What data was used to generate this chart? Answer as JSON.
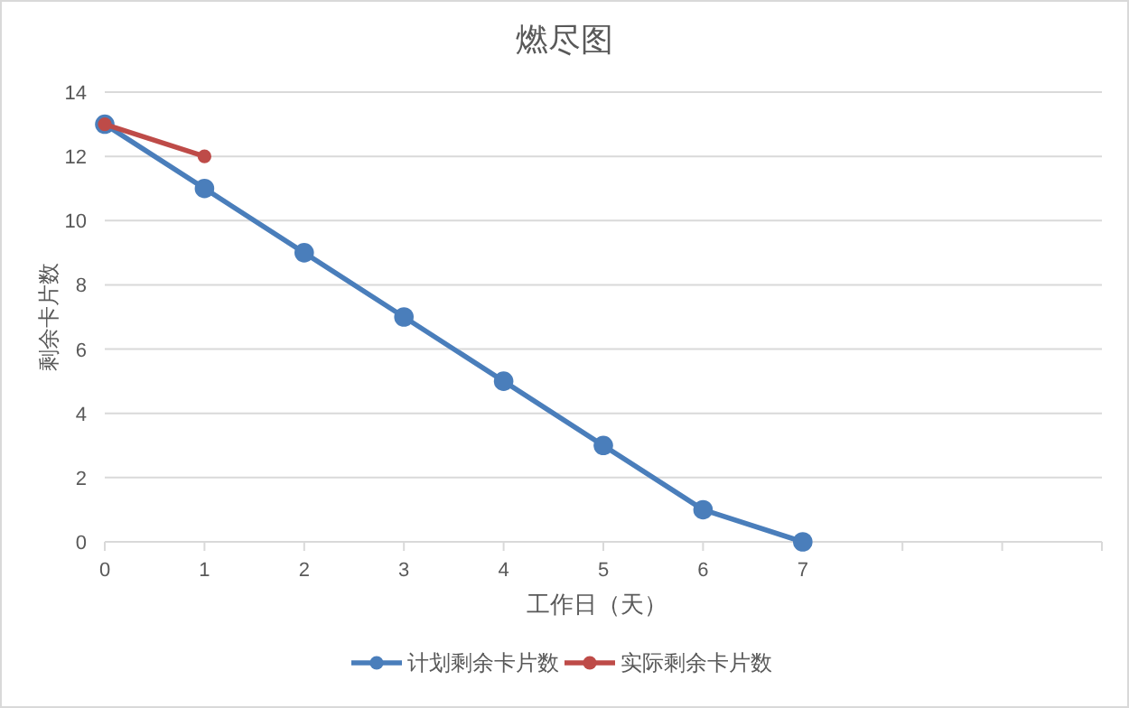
{
  "chart_data": {
    "type": "line",
    "title": "燃尽图",
    "xlabel": "工作日（天）",
    "ylabel": "剩余卡片数",
    "categories": [
      "0",
      "1",
      "2",
      "3",
      "4",
      "5",
      "6",
      "7",
      null,
      null,
      null
    ],
    "series": [
      {
        "name": "计划剩余卡片数",
        "color": "#4a7ebb",
        "values": [
          13,
          11,
          9,
          7,
          5,
          3,
          1,
          0,
          null,
          null,
          null
        ]
      },
      {
        "name": "实际剩余卡片数",
        "color": "#be4b48",
        "values": [
          13,
          12,
          null,
          null,
          null,
          null,
          null,
          null,
          null,
          null,
          null
        ]
      }
    ],
    "ylim": [
      0,
      14
    ],
    "yticks": [
      0,
      2,
      4,
      6,
      8,
      10,
      12,
      14
    ],
    "grid": "y",
    "legend": "bottom",
    "marker": "circle",
    "line_style": "solid"
  }
}
